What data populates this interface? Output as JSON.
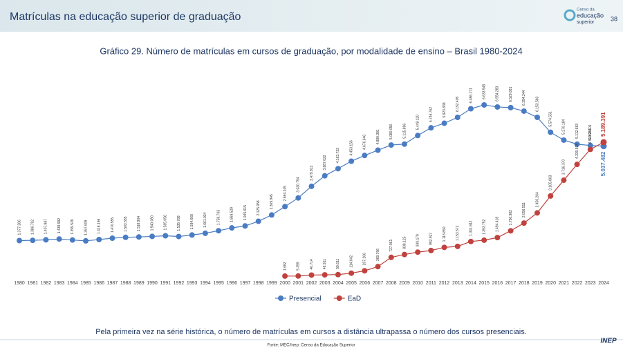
{
  "header": {
    "title": "Matrículas na educação superior de graduação",
    "page": "38",
    "logo": [
      "Censo da",
      "educação",
      "superior"
    ]
  },
  "chart_data": {
    "type": "line",
    "title": "Gráfico 29. Número de matrículas em cursos de graduação, por modalidade de ensino – Brasil 1980-2024",
    "categories": [
      "1980",
      "1981",
      "1982",
      "1983",
      "1984",
      "1985",
      "1986",
      "1987",
      "1988",
      "1989",
      "1990",
      "1991",
      "1992",
      "1993",
      "1994",
      "1995",
      "1996",
      "1997",
      "1998",
      "1999",
      "2000",
      "2001",
      "2002",
      "2003",
      "2004",
      "2005",
      "2006",
      "2007",
      "2008",
      "2009",
      "2010",
      "2011",
      "2012",
      "2013",
      "2014",
      "2015",
      "2016",
      "2017",
      "2018",
      "2019",
      "2020",
      "2021",
      "2022",
      "2023",
      "2024"
    ],
    "series": [
      {
        "name": "Presencial",
        "color": "#4a7cc3",
        "values": [
          1377286,
          1386792,
          1407987,
          1438992,
          1399539,
          1367609,
          1418196,
          1470555,
          1503555,
          1518904,
          1540080,
          1565056,
          1535788,
          1594668,
          1661034,
          1759703,
          1868529,
          1945615,
          2125958,
          2369945,
          2694245,
          3030754,
          3479913,
          3887022,
          4163733,
          4453156,
          4676646,
          4880381,
          5080056,
          5115896,
          5449120,
          5746762,
          5923838,
          6152405,
          6486171,
          6633545,
          6554283,
          6529681,
          6394244,
          6153560,
          5574551,
          5270184,
          5112683,
          5063601,
          5037482
        ],
        "value_labels": [
          "1.377.286",
          "1.386.792",
          "1.407.987",
          "1.438.992",
          "1.399.539",
          "1.367.609",
          "1.418.196",
          "1.470.555",
          "1.503.555",
          "1.518.904",
          "1.540.080",
          "1.565.056",
          "1.535.788",
          "1.594.668",
          "1.661.034",
          "1.759.703",
          "1.868.529",
          "1.945.615",
          "2.125.958",
          "2.369.945",
          "2.694.245",
          "3.030.754",
          "3.479.913",
          "3.887.022",
          "4.163.733",
          "4.453.156",
          "4.676.646",
          "4.880.381",
          "5.080.056",
          "5.115.896",
          "5.449.120",
          "5.746.762",
          "5.923.838",
          "6.152.405",
          "6.486.171",
          "6.633.545",
          "6.554.283",
          "6.529.681",
          "6.394.244",
          "6.153.560",
          "5.574.551",
          "5.270.184",
          "5.112.683",
          "5.063.601",
          "5.037.482"
        ]
      },
      {
        "name": "EaD",
        "color": "#c0423e",
        "values": [
          null,
          null,
          null,
          null,
          null,
          null,
          null,
          null,
          null,
          null,
          null,
          null,
          null,
          null,
          null,
          null,
          null,
          null,
          null,
          null,
          1682,
          5359,
          40714,
          49911,
          59611,
          114642,
          207206,
          369766,
          727961,
          838125,
          930179,
          992927,
          1113850,
          1153572,
          1341842,
          1393752,
          1494418,
          1756982,
          2056511,
          2450264,
          3105803,
          3716370,
          4330934,
          4913281,
          5189391
        ],
        "value_labels": [
          null,
          null,
          null,
          null,
          null,
          null,
          null,
          null,
          null,
          null,
          null,
          null,
          null,
          null,
          null,
          null,
          null,
          null,
          null,
          null,
          "1.682",
          "5.359",
          "40.714",
          "49.911",
          "59.611",
          "114.642",
          "207.206",
          "369.766",
          "727.961",
          "838.125",
          "930.179",
          "992.927",
          "1.113.850",
          "1.153.572",
          "1.341.842",
          "1.393.752",
          "1.494.418",
          "1.756.982",
          "2.056.511",
          "2.450.264",
          "3.105.803",
          "3.716.370",
          "4.330.934",
          "4.913.281",
          "5.189.391"
        ]
      }
    ],
    "legend": "bottom"
  },
  "note": "Pela primeira vez na série histórica, o número de matrículas em cursos a distância ultrapassa o número dos cursos presenciais.",
  "source": "Fonte: MEC/Inep; Censo da Educação Superior",
  "brand": "INEP"
}
